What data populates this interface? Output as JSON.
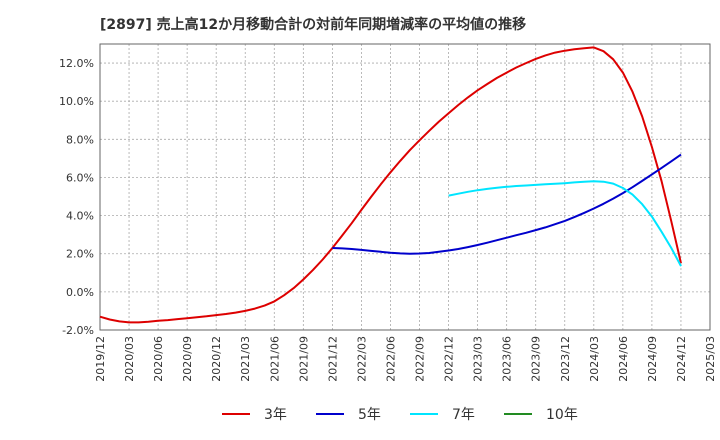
{
  "chart_data": {
    "type": "line",
    "title": "[2897]  売上高12か月移動合計の対前年同期増減率の平均値の推移",
    "xlabel": "",
    "ylabel": "",
    "ylim": [
      -2.0,
      13.0
    ],
    "yticks": [
      -2.0,
      0.0,
      2.0,
      4.0,
      6.0,
      8.0,
      10.0,
      12.0
    ],
    "ytick_labels": [
      "-2.0%",
      "0.0%",
      "2.0%",
      "4.0%",
      "6.0%",
      "8.0%",
      "10.0%",
      "12.0%"
    ],
    "x_start": "2019-12",
    "x_end": "2025-03",
    "x_tick_labels": [
      "2019/12",
      "2020/03",
      "2020/06",
      "2020/09",
      "2020/12",
      "2021/03",
      "2021/06",
      "2021/09",
      "2021/12",
      "2022/03",
      "2022/06",
      "2022/09",
      "2022/12",
      "2023/03",
      "2023/06",
      "2023/09",
      "2023/12",
      "2024/03",
      "2024/06",
      "2024/09",
      "2024/12",
      "2025/03"
    ],
    "grid": true,
    "legend_position": "bottom",
    "series": [
      {
        "name": "3年",
        "color": "#dd0000",
        "x": [
          "2019-12",
          "2020-01",
          "2020-02",
          "2020-03",
          "2020-04",
          "2020-05",
          "2020-06",
          "2020-07",
          "2020-08",
          "2020-09",
          "2020-10",
          "2020-11",
          "2020-12",
          "2021-01",
          "2021-02",
          "2021-03",
          "2021-04",
          "2021-05",
          "2021-06",
          "2021-07",
          "2021-08",
          "2021-09",
          "2021-10",
          "2021-11",
          "2021-12",
          "2022-01",
          "2022-02",
          "2022-03",
          "2022-04",
          "2022-05",
          "2022-06",
          "2022-07",
          "2022-08",
          "2022-09",
          "2022-10",
          "2022-11",
          "2022-12",
          "2023-01",
          "2023-02",
          "2023-03",
          "2023-04",
          "2023-05",
          "2023-06",
          "2023-07",
          "2023-08",
          "2023-09",
          "2023-10",
          "2023-11",
          "2023-12",
          "2024-01",
          "2024-02",
          "2024-03",
          "2024-04",
          "2024-05",
          "2024-06",
          "2024-07",
          "2024-08",
          "2024-09",
          "2024-10",
          "2024-11",
          "2024-12"
        ],
        "values": [
          -1.3,
          -1.45,
          -1.55,
          -1.6,
          -1.6,
          -1.57,
          -1.52,
          -1.48,
          -1.43,
          -1.38,
          -1.33,
          -1.28,
          -1.22,
          -1.16,
          -1.09,
          -1.0,
          -0.88,
          -0.72,
          -0.5,
          -0.18,
          0.2,
          0.65,
          1.15,
          1.7,
          2.3,
          2.95,
          3.6,
          4.3,
          4.98,
          5.64,
          6.27,
          6.87,
          7.43,
          7.95,
          8.45,
          8.93,
          9.37,
          9.8,
          10.2,
          10.57,
          10.9,
          11.22,
          11.5,
          11.77,
          12.0,
          12.22,
          12.4,
          12.55,
          12.65,
          12.72,
          12.78,
          12.82,
          12.62,
          12.2,
          11.5,
          10.5,
          9.2,
          7.6,
          5.8,
          3.7,
          1.5
        ]
      },
      {
        "name": "5年",
        "color": "#0000cc",
        "x": [
          "2021-12",
          "2022-01",
          "2022-02",
          "2022-03",
          "2022-04",
          "2022-05",
          "2022-06",
          "2022-07",
          "2022-08",
          "2022-09",
          "2022-10",
          "2022-11",
          "2022-12",
          "2023-01",
          "2023-02",
          "2023-03",
          "2023-04",
          "2023-05",
          "2023-06",
          "2023-07",
          "2023-08",
          "2023-09",
          "2023-10",
          "2023-11",
          "2023-12",
          "2024-01",
          "2024-02",
          "2024-03",
          "2024-04",
          "2024-05",
          "2024-06",
          "2024-07",
          "2024-08",
          "2024-09",
          "2024-10",
          "2024-11",
          "2024-12"
        ],
        "values": [
          2.3,
          2.28,
          2.25,
          2.2,
          2.15,
          2.1,
          2.05,
          2.02,
          2.0,
          2.01,
          2.04,
          2.1,
          2.17,
          2.25,
          2.35,
          2.46,
          2.58,
          2.71,
          2.84,
          2.97,
          3.1,
          3.24,
          3.38,
          3.55,
          3.72,
          3.92,
          4.14,
          4.37,
          4.62,
          4.89,
          5.18,
          5.49,
          5.82,
          6.16,
          6.5,
          6.85,
          7.2
        ]
      },
      {
        "name": "7年",
        "color": "#00e5ff",
        "x": [
          "2022-12",
          "2023-01",
          "2023-02",
          "2023-03",
          "2023-04",
          "2023-05",
          "2023-06",
          "2023-07",
          "2023-08",
          "2023-09",
          "2023-10",
          "2023-11",
          "2023-12",
          "2024-01",
          "2024-02",
          "2024-03",
          "2024-04",
          "2024-05",
          "2024-06",
          "2024-07",
          "2024-08",
          "2024-09",
          "2024-10",
          "2024-11",
          "2024-12"
        ],
        "values": [
          5.05,
          5.15,
          5.25,
          5.33,
          5.4,
          5.46,
          5.51,
          5.55,
          5.58,
          5.61,
          5.64,
          5.67,
          5.7,
          5.74,
          5.78,
          5.8,
          5.78,
          5.68,
          5.45,
          5.1,
          4.6,
          3.95,
          3.15,
          2.3,
          1.35
        ]
      },
      {
        "name": "10年",
        "color": "#228b22",
        "x": [],
        "values": []
      }
    ]
  }
}
